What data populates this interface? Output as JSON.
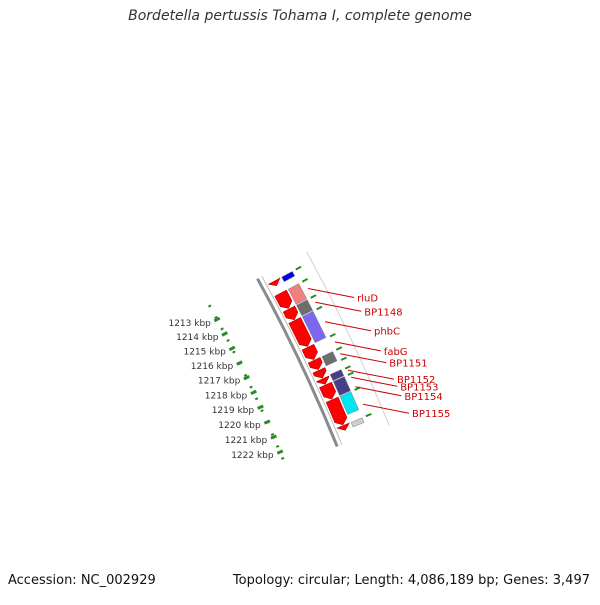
{
  "title": "Bordetella pertussis Tohama I, complete genome",
  "accession": "Accession: NC_002929",
  "topology": "Topology: circular; Length: 4,086,189 bp; Genes: 3,497",
  "colors": {
    "backbone": "#8a8a8a",
    "forward": "#ff0000",
    "tick": "#2a8a2a",
    "label": "#cc0000",
    "tick_label": "#333333"
  },
  "ticks": [
    {
      "label": "1213 kbp",
      "kbp": 1213
    },
    {
      "label": "1214 kbp",
      "kbp": 1214
    },
    {
      "label": "1215 kbp",
      "kbp": 1215
    },
    {
      "label": "1216 kbp",
      "kbp": 1216
    },
    {
      "label": "1217 kbp",
      "kbp": 1217
    },
    {
      "label": "1218 kbp",
      "kbp": 1218
    },
    {
      "label": "1219 kbp",
      "kbp": 1219
    },
    {
      "label": "1220 kbp",
      "kbp": 1220
    },
    {
      "label": "1221 kbp",
      "kbp": 1221
    },
    {
      "label": "1222 kbp",
      "kbp": 1222
    }
  ],
  "forward_genes": [
    {
      "start": 1212.6,
      "end": 1212.9
    },
    {
      "start": 1213.4,
      "end": 1214.4
    },
    {
      "start": 1214.45,
      "end": 1215.15
    },
    {
      "start": 1215.2,
      "end": 1216.9
    },
    {
      "start": 1216.95,
      "end": 1217.75
    },
    {
      "start": 1217.8,
      "end": 1218.4
    },
    {
      "start": 1218.45,
      "end": 1218.95
    },
    {
      "start": 1219.0,
      "end": 1219.35
    },
    {
      "start": 1219.4,
      "end": 1220.3
    },
    {
      "start": 1220.35,
      "end": 1221.95
    },
    {
      "start": 1222.0,
      "end": 1222.3
    }
  ],
  "cog_genes": [
    {
      "start": 1212.6,
      "end": 1212.9,
      "color": "#cccccc"
    },
    {
      "start": 1212.6,
      "end": 1212.9,
      "color": "#0000ee"
    },
    {
      "start": 1213.4,
      "end": 1214.4,
      "color": "#f08080"
    },
    {
      "start": 1214.45,
      "end": 1215.15,
      "color": "#6e6e6e"
    },
    {
      "start": 1215.2,
      "end": 1216.9,
      "color": "#7b68ee"
    },
    {
      "start": 1217.8,
      "end": 1218.4,
      "color": "#6e6e6e"
    },
    {
      "start": 1218.95,
      "end": 1219.35,
      "color": "#483d8b"
    },
    {
      "start": 1219.4,
      "end": 1220.3,
      "color": "#483d8b"
    },
    {
      "start": 1220.35,
      "end": 1221.5,
      "color": "#00e5ee"
    },
    {
      "start": 1222.0,
      "end": 1222.3,
      "color": "#cccccc"
    }
  ],
  "gene_labels": [
    {
      "text": "rluD",
      "kbp": 1213.9
    },
    {
      "text": "BP1148",
      "kbp": 1214.8
    },
    {
      "text": "phbC",
      "kbp": 1216.05
    },
    {
      "text": "fabG",
      "kbp": 1217.35
    },
    {
      "text": "BP1151",
      "kbp": 1218.1
    },
    {
      "text": "BP1152",
      "kbp": 1219.15
    },
    {
      "text": "BP1153",
      "kbp": 1219.6
    },
    {
      "text": "BP1154",
      "kbp": 1220.2
    },
    {
      "text": "BP1155",
      "kbp": 1221.3
    }
  ]
}
